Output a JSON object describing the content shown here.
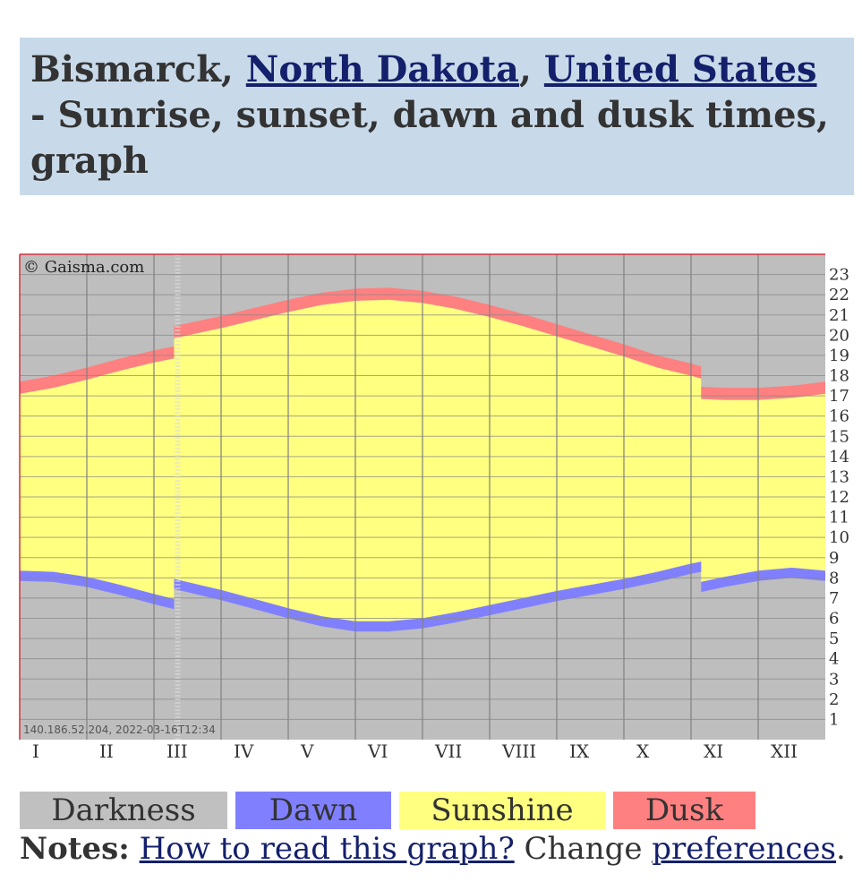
{
  "header": {
    "city": "Bismarck",
    "sep1": ", ",
    "state_link": "North Dakota",
    "sep2": ", ",
    "country_link": "United States",
    "suffix": " - Sunrise, sunset, dawn and dusk times, graph"
  },
  "chart_data": {
    "type": "area",
    "copyright": "© Gaisma.com",
    "footer_stamp": "140.186.52.204, 2022-03-16T12:34",
    "months": [
      "I",
      "II",
      "III",
      "IV",
      "V",
      "VI",
      "VII",
      "VIII",
      "IX",
      "X",
      "XI",
      "XII"
    ],
    "y_ticks": [
      1,
      2,
      3,
      4,
      5,
      6,
      7,
      8,
      9,
      10,
      11,
      12,
      13,
      14,
      15,
      16,
      17,
      18,
      19,
      20,
      21,
      22,
      23
    ],
    "ylim": [
      0,
      24
    ],
    "grid": true,
    "dst_periods": [
      {
        "start_month": 3.3,
        "end_month": 11.15
      }
    ],
    "series": [
      {
        "name": "Dawn",
        "color": "#8080ff",
        "x": [
          1,
          1.5,
          2,
          2.5,
          3,
          3.3,
          3.3,
          4,
          4.5,
          5,
          5.5,
          6,
          6.5,
          7,
          7.5,
          8,
          8.5,
          9,
          9.5,
          10,
          10.5,
          11,
          11.15,
          11.15,
          11.5,
          12,
          12.5,
          13
        ],
        "start": [
          7.85,
          7.8,
          7.55,
          7.15,
          6.7,
          6.45,
          7.45,
          6.9,
          6.45,
          6.0,
          5.6,
          5.35,
          5.35,
          5.5,
          5.8,
          6.15,
          6.5,
          6.85,
          7.15,
          7.45,
          7.8,
          8.2,
          8.3,
          7.3,
          7.55,
          7.85,
          8.0,
          7.85
        ],
        "end": [
          8.35,
          8.3,
          8.05,
          7.65,
          7.2,
          6.95,
          7.95,
          7.4,
          6.95,
          6.5,
          6.1,
          5.85,
          5.85,
          6.0,
          6.3,
          6.65,
          7.0,
          7.35,
          7.65,
          7.95,
          8.3,
          8.7,
          8.8,
          7.8,
          8.05,
          8.35,
          8.5,
          8.35
        ]
      },
      {
        "name": "Sunshine",
        "color": "#ffff80"
      },
      {
        "name": "Dusk",
        "color": "#ff8080",
        "x": [
          1,
          1.5,
          2,
          2.5,
          3,
          3.3,
          3.3,
          4,
          4.5,
          5,
          5.5,
          6,
          6.5,
          7,
          7.5,
          8,
          8.5,
          9,
          9.5,
          10,
          10.5,
          11,
          11.15,
          11.15,
          11.5,
          12,
          12.5,
          13
        ],
        "start": [
          17.1,
          17.4,
          17.8,
          18.25,
          18.65,
          18.85,
          19.85,
          20.35,
          20.75,
          21.15,
          21.5,
          21.7,
          21.75,
          21.6,
          21.3,
          20.9,
          20.45,
          19.95,
          19.45,
          18.95,
          18.4,
          18.0,
          17.85,
          16.85,
          16.8,
          16.8,
          16.9,
          17.1
        ],
        "end": [
          17.7,
          18.0,
          18.4,
          18.85,
          19.25,
          19.45,
          20.45,
          20.95,
          21.35,
          21.75,
          22.1,
          22.3,
          22.35,
          22.2,
          21.9,
          21.5,
          21.05,
          20.55,
          20.05,
          19.55,
          19.0,
          18.6,
          18.45,
          17.45,
          17.4,
          17.4,
          17.5,
          17.7
        ]
      },
      {
        "name": "Darkness",
        "color": "#bebebe"
      }
    ]
  },
  "legend": [
    {
      "label": "Darkness",
      "color": "#c0c0c0"
    },
    {
      "label": "Dawn",
      "color": "#8080ff"
    },
    {
      "label": "Sunshine",
      "color": "#ffff80"
    },
    {
      "label": "Dusk",
      "color": "#ff8080"
    }
  ],
  "notes": {
    "label": "Notes:",
    "how_link": "How to read this graph?",
    "change_text": "Change",
    "prefs_link": "preferences",
    "end": "."
  }
}
